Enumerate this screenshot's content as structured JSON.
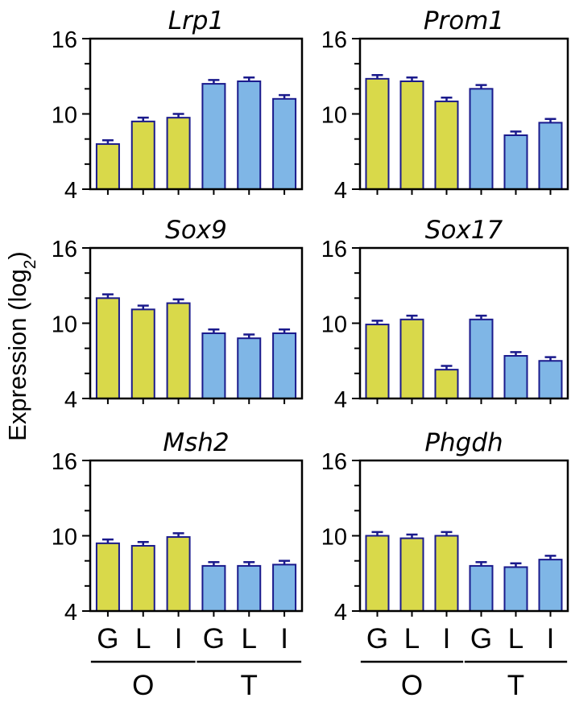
{
  "figure": {
    "ylabel": "Expression (log",
    "ylabel_sub": "2",
    "ylabel_close": ")",
    "colors": {
      "O": "#d9d94a",
      "T": "#7fb6e6",
      "bar_outline": "#1a1a8c",
      "error": "#1a1a8c"
    },
    "x_categories": [
      "G",
      "L",
      "I",
      "G",
      "L",
      "I"
    ],
    "groups": [
      {
        "label": "O",
        "members": [
          0,
          1,
          2
        ]
      },
      {
        "label": "T",
        "members": [
          3,
          4,
          5
        ]
      }
    ]
  },
  "chart_data": [
    {
      "type": "bar",
      "title": "Lrp1",
      "ylim": [
        4,
        16
      ],
      "yticks": [
        4,
        10,
        16
      ],
      "categories": [
        "G",
        "L",
        "I",
        "G",
        "L",
        "I"
      ],
      "groups": [
        "O",
        "O",
        "O",
        "T",
        "T",
        "T"
      ],
      "values": [
        7.6,
        9.4,
        9.7,
        12.4,
        12.6,
        11.2
      ],
      "errors": [
        0.3,
        0.3,
        0.3,
        0.3,
        0.3,
        0.3
      ]
    },
    {
      "type": "bar",
      "title": "Prom1",
      "ylim": [
        4,
        16
      ],
      "yticks": [
        4,
        10,
        16
      ],
      "categories": [
        "G",
        "L",
        "I",
        "G",
        "L",
        "I"
      ],
      "groups": [
        "O",
        "O",
        "O",
        "T",
        "T",
        "T"
      ],
      "values": [
        12.8,
        12.6,
        11.0,
        12.0,
        8.3,
        9.3
      ],
      "errors": [
        0.3,
        0.3,
        0.3,
        0.3,
        0.3,
        0.3
      ]
    },
    {
      "type": "bar",
      "title": "Sox9",
      "ylim": [
        4,
        16
      ],
      "yticks": [
        4,
        10,
        16
      ],
      "categories": [
        "G",
        "L",
        "I",
        "G",
        "L",
        "I"
      ],
      "groups": [
        "O",
        "O",
        "O",
        "T",
        "T",
        "T"
      ],
      "values": [
        12.0,
        11.1,
        11.6,
        9.2,
        8.8,
        9.2
      ],
      "errors": [
        0.3,
        0.3,
        0.3,
        0.3,
        0.3,
        0.3
      ]
    },
    {
      "type": "bar",
      "title": "Sox17",
      "ylim": [
        4,
        16
      ],
      "yticks": [
        4,
        10,
        16
      ],
      "categories": [
        "G",
        "L",
        "I",
        "G",
        "L",
        "I"
      ],
      "groups": [
        "O",
        "O",
        "O",
        "T",
        "T",
        "T"
      ],
      "values": [
        9.9,
        10.3,
        6.3,
        10.3,
        7.4,
        7.0
      ],
      "errors": [
        0.3,
        0.3,
        0.3,
        0.3,
        0.3,
        0.3
      ]
    },
    {
      "type": "bar",
      "title": "Msh2",
      "ylim": [
        4,
        16
      ],
      "yticks": [
        4,
        10,
        16
      ],
      "categories": [
        "G",
        "L",
        "I",
        "G",
        "L",
        "I"
      ],
      "groups": [
        "O",
        "O",
        "O",
        "T",
        "T",
        "T"
      ],
      "values": [
        9.4,
        9.2,
        9.9,
        7.6,
        7.6,
        7.7
      ],
      "errors": [
        0.3,
        0.3,
        0.3,
        0.3,
        0.3,
        0.3
      ]
    },
    {
      "type": "bar",
      "title": "Phgdh",
      "ylim": [
        4,
        16
      ],
      "yticks": [
        4,
        10,
        16
      ],
      "categories": [
        "G",
        "L",
        "I",
        "G",
        "L",
        "I"
      ],
      "groups": [
        "O",
        "O",
        "O",
        "T",
        "T",
        "T"
      ],
      "values": [
        10.0,
        9.8,
        10.0,
        7.6,
        7.5,
        8.1
      ],
      "errors": [
        0.3,
        0.3,
        0.3,
        0.3,
        0.3,
        0.3
      ]
    }
  ]
}
